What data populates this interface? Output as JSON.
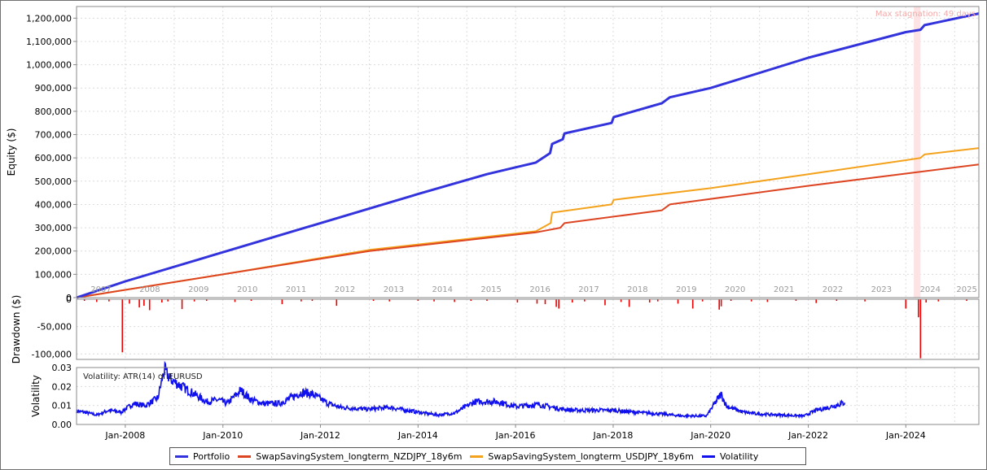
{
  "chart_data": [
    {
      "type": "line",
      "panel": "equity",
      "ylabel": "Equity ($)",
      "ylim": [
        0,
        1250000
      ],
      "yticks": [
        0,
        100000,
        200000,
        300000,
        400000,
        500000,
        600000,
        700000,
        800000,
        900000,
        1000000,
        1100000,
        1200000
      ],
      "ytick_labels": [
        "0",
        "100,000",
        "200,000",
        "300,000",
        "400,000",
        "500,000",
        "600,000",
        "700,000",
        "800,000",
        "900,000",
        "1,000,000",
        "1,100,000",
        "1,200,000"
      ],
      "year_labels": [
        "2007",
        "2008",
        "2009",
        "2010",
        "2011",
        "2012",
        "2013",
        "2014",
        "2015",
        "2016",
        "2017",
        "2018",
        "2019",
        "2020",
        "2021",
        "2022",
        "2023",
        "2024",
        "2025"
      ],
      "annotation": "Max stagnation: 49 days",
      "stagnation_band": [
        "2024-03-01",
        "2024-04-20"
      ],
      "grid": true,
      "series": [
        {
          "name": "Portfolio",
          "color": "#3333dd",
          "points": [
            [
              "2007-01-01",
              0
            ],
            [
              "2008-01-01",
              70000
            ],
            [
              "2010-01-01",
              195000
            ],
            [
              "2012-01-01",
              320000
            ],
            [
              "2014-01-01",
              445000
            ],
            [
              "2015-06-01",
              530000
            ],
            [
              "2016-06-01",
              580000
            ],
            [
              "2016-09-15",
              620000
            ],
            [
              "2016-10-01",
              660000
            ],
            [
              "2016-12-20",
              680000
            ],
            [
              "2017-01-01",
              705000
            ],
            [
              "2017-12-20",
              750000
            ],
            [
              "2018-01-05",
              775000
            ],
            [
              "2019-01-01",
              835000
            ],
            [
              "2019-03-01",
              860000
            ],
            [
              "2020-01-01",
              900000
            ],
            [
              "2022-01-01",
              1030000
            ],
            [
              "2024-01-01",
              1140000
            ],
            [
              "2024-04-20",
              1150000
            ],
            [
              "2024-05-20",
              1170000
            ],
            [
              "2025-07-01",
              1220000
            ]
          ]
        },
        {
          "name": "SwapSavingSystem_longterm_NZDJPY_18y6m",
          "color": "#dd4422",
          "points": [
            [
              "2007-01-01",
              0
            ],
            [
              "2010-01-01",
              100000
            ],
            [
              "2013-01-01",
              200000
            ],
            [
              "2016-06-01",
              280000
            ],
            [
              "2016-12-01",
              300000
            ],
            [
              "2017-01-01",
              320000
            ],
            [
              "2019-01-01",
              375000
            ],
            [
              "2019-03-01",
              400000
            ],
            [
              "2022-01-01",
              480000
            ],
            [
              "2025-07-01",
              572000
            ]
          ]
        },
        {
          "name": "SwapSavingSystem_longterm_USDJPY_18y6m",
          "color": "#f4a21c",
          "points": [
            [
              "2007-01-01",
              0
            ],
            [
              "2010-01-01",
              100000
            ],
            [
              "2013-01-01",
              205000
            ],
            [
              "2016-06-01",
              285000
            ],
            [
              "2016-09-20",
              320000
            ],
            [
              "2016-10-01",
              365000
            ],
            [
              "2017-12-20",
              400000
            ],
            [
              "2018-01-05",
              420000
            ],
            [
              "2020-01-01",
              470000
            ],
            [
              "2022-01-01",
              530000
            ],
            [
              "2024-01-01",
              590000
            ],
            [
              "2024-04-20",
              600000
            ],
            [
              "2024-05-20",
              615000
            ],
            [
              "2025-07-01",
              642000
            ]
          ]
        }
      ]
    },
    {
      "type": "bar",
      "panel": "drawdown",
      "ylabel": "Drawdown ($)",
      "ylim": [
        -110000,
        0
      ],
      "yticks": [
        0,
        -50000,
        -100000
      ],
      "ytick_labels": [
        "0",
        "-50,000",
        "-100,000"
      ],
      "color": "#ee0000",
      "points": [
        [
          "2007-03-01",
          -3000
        ],
        [
          "2007-06-01",
          -5000
        ],
        [
          "2007-09-01",
          -4000
        ],
        [
          "2007-12-10",
          -97000
        ],
        [
          "2008-02-01",
          -8000
        ],
        [
          "2008-04-15",
          -15000
        ],
        [
          "2008-05-20",
          -12000
        ],
        [
          "2008-07-01",
          -20000
        ],
        [
          "2008-10-01",
          -6000
        ],
        [
          "2008-11-15",
          -4000
        ],
        [
          "2009-03-01",
          -18000
        ],
        [
          "2009-06-01",
          -4000
        ],
        [
          "2009-09-01",
          -3000
        ],
        [
          "2010-04-01",
          -5000
        ],
        [
          "2010-08-01",
          -3000
        ],
        [
          "2011-03-20",
          -9000
        ],
        [
          "2011-08-10",
          -4000
        ],
        [
          "2011-11-01",
          -3000
        ],
        [
          "2012-05-01",
          -12000
        ],
        [
          "2013-02-01",
          -3000
        ],
        [
          "2013-06-01",
          -4000
        ],
        [
          "2014-01-01",
          -3000
        ],
        [
          "2014-05-01",
          -4000
        ],
        [
          "2014-10-01",
          -5000
        ],
        [
          "2015-02-01",
          -3000
        ],
        [
          "2015-06-01",
          -3000
        ],
        [
          "2016-01-15",
          -6000
        ],
        [
          "2016-06-10",
          -8000
        ],
        [
          "2016-08-10",
          -9000
        ],
        [
          "2016-11-01",
          -14000
        ],
        [
          "2016-11-20",
          -17000
        ],
        [
          "2017-03-01",
          -6000
        ],
        [
          "2017-06-01",
          -4000
        ],
        [
          "2017-11-01",
          -11000
        ],
        [
          "2018-03-01",
          -5000
        ],
        [
          "2018-05-01",
          -14000
        ],
        [
          "2018-10-01",
          -6000
        ],
        [
          "2018-12-01",
          -4000
        ],
        [
          "2019-05-01",
          -8000
        ],
        [
          "2019-08-20",
          -17000
        ],
        [
          "2019-11-01",
          -4000
        ],
        [
          "2020-03-05",
          -19000
        ],
        [
          "2020-03-20",
          -13000
        ],
        [
          "2020-06-01",
          -3000
        ],
        [
          "2020-11-01",
          -4000
        ],
        [
          "2021-03-01",
          -5000
        ],
        [
          "2021-10-01",
          -3000
        ],
        [
          "2022-03-01",
          -7000
        ],
        [
          "2022-08-01",
          -3000
        ],
        [
          "2023-03-01",
          -4000
        ],
        [
          "2024-01-01",
          -17000
        ],
        [
          "2024-04-05",
          -33000
        ],
        [
          "2024-04-20",
          -108000
        ],
        [
          "2024-06-01",
          -6000
        ],
        [
          "2024-09-01",
          -4000
        ],
        [
          "2025-04-01",
          -3000
        ]
      ]
    },
    {
      "type": "line",
      "panel": "volatility",
      "ylabel": "Volatility",
      "ylim": [
        0,
        0.03
      ],
      "yticks": [
        0,
        0.01,
        0.02,
        0.03
      ],
      "ytick_labels": [
        "0.00",
        "0.01",
        "0.02",
        "0.03"
      ],
      "annotation": "Volatility: ATR(14) of EURUSD",
      "xticks": [
        "2008-01-01",
        "2010-01-01",
        "2012-01-01",
        "2014-01-01",
        "2016-01-01",
        "2018-01-01",
        "2020-01-01",
        "2022-01-01",
        "2024-01-01"
      ],
      "xtick_labels": [
        "Jan-2008",
        "Jan-2010",
        "Jan-2012",
        "Jan-2014",
        "Jan-2016",
        "Jan-2018",
        "Jan-2020",
        "Jan-2022",
        "Jan-2024"
      ],
      "series": [
        {
          "name": "Volatility",
          "color": "#1010ee",
          "points": [
            [
              "2007-01-01",
              0.007
            ],
            [
              "2007-03-01",
              0.0065
            ],
            [
              "2007-06-01",
              0.005
            ],
            [
              "2007-09-01",
              0.0075
            ],
            [
              "2007-12-01",
              0.0065
            ],
            [
              "2008-03-01",
              0.011
            ],
            [
              "2008-06-01",
              0.01
            ],
            [
              "2008-09-01",
              0.014
            ],
            [
              "2008-10-20",
              0.029
            ],
            [
              "2008-12-01",
              0.024
            ],
            [
              "2009-03-01",
              0.02
            ],
            [
              "2009-06-01",
              0.016
            ],
            [
              "2009-09-01",
              0.012
            ],
            [
              "2009-12-01",
              0.013
            ],
            [
              "2010-02-01",
              0.011
            ],
            [
              "2010-05-15",
              0.018
            ],
            [
              "2010-08-01",
              0.013
            ],
            [
              "2010-11-01",
              0.011
            ],
            [
              "2011-03-01",
              0.011
            ],
            [
              "2011-08-15",
              0.017
            ],
            [
              "2011-11-01",
              0.016
            ],
            [
              "2012-03-01",
              0.011
            ],
            [
              "2012-06-01",
              0.009
            ],
            [
              "2013-01-01",
              0.008
            ],
            [
              "2013-06-01",
              0.009
            ],
            [
              "2014-01-01",
              0.0065
            ],
            [
              "2014-06-01",
              0.005
            ],
            [
              "2014-10-01",
              0.006
            ],
            [
              "2015-03-01",
              0.012
            ],
            [
              "2015-08-20",
              0.012
            ],
            [
              "2016-01-01",
              0.0095
            ],
            [
              "2016-06-24",
              0.0105
            ],
            [
              "2016-11-10",
              0.0085
            ],
            [
              "2017-03-01",
              0.0075
            ],
            [
              "2017-06-01",
              0.0075
            ],
            [
              "2018-01-01",
              0.0075
            ],
            [
              "2018-06-01",
              0.0065
            ],
            [
              "2019-01-01",
              0.0055
            ],
            [
              "2019-06-01",
              0.0045
            ],
            [
              "2019-12-01",
              0.0045
            ],
            [
              "2020-03-18",
              0.016
            ],
            [
              "2020-05-01",
              0.0095
            ],
            [
              "2020-09-01",
              0.0065
            ],
            [
              "2021-01-01",
              0.0055
            ],
            [
              "2021-06-01",
              0.005
            ],
            [
              "2021-12-01",
              0.0045
            ],
            [
              "2022-03-01",
              0.0075
            ],
            [
              "2022-06-01",
              0.009
            ],
            [
              "2022-10-01",
              0.0115
            ]
          ]
        }
      ]
    }
  ],
  "legend": [
    {
      "label": "Portfolio",
      "color": "#3333dd"
    },
    {
      "label": "SwapSavingSystem_longterm_NZDJPY_18y6m",
      "color": "#dd4422"
    },
    {
      "label": "SwapSavingSystem_longterm_USDJPY_18y6m",
      "color": "#f4a21c"
    },
    {
      "label": "Volatility",
      "color": "#1010ee"
    }
  ]
}
